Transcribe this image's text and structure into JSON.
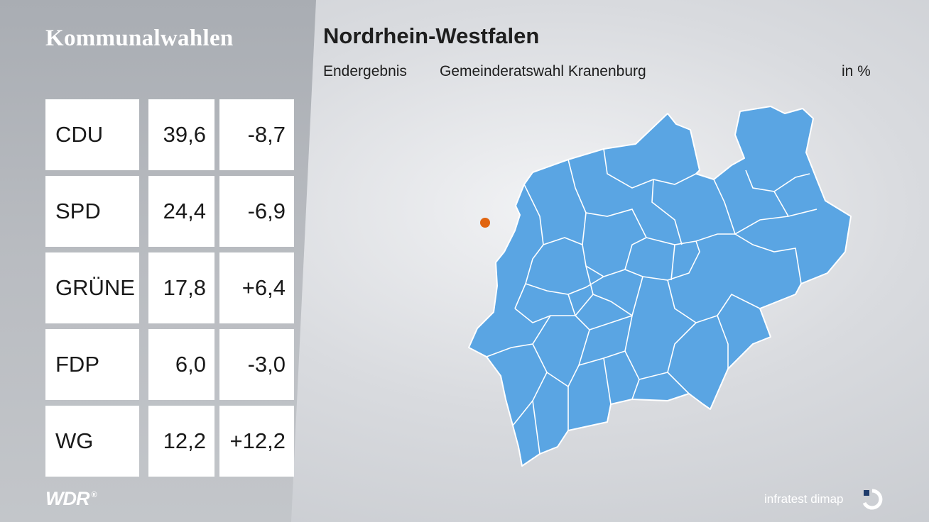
{
  "header": {
    "section": "Kommunalwahlen",
    "region": "Nordrhein-Westfalen",
    "status": "Endergebnis",
    "election": "Gemeinderatswahl Kranenburg",
    "unit": "in %"
  },
  "results": [
    {
      "party": "CDU",
      "share": "39,6",
      "diff": "-8,7"
    },
    {
      "party": "SPD",
      "share": "24,4",
      "diff": "-6,9"
    },
    {
      "party": "GRÜNE",
      "share": "17,8",
      "diff": "+6,4"
    },
    {
      "party": "FDP",
      "share": "6,0",
      "diff": "-3,0"
    },
    {
      "party": "WG",
      "share": "12,2",
      "diff": "+12,2"
    }
  ],
  "map": {
    "region_color": "#5aa5e3",
    "border_color": "#ffffff",
    "marker_color": "#e0640f",
    "marker": "Kranenburg"
  },
  "footer": {
    "broadcaster": "WDR",
    "broadcaster_mark": "®",
    "source": "infratest dimap",
    "source_icon": "infratest-logo-icon"
  }
}
